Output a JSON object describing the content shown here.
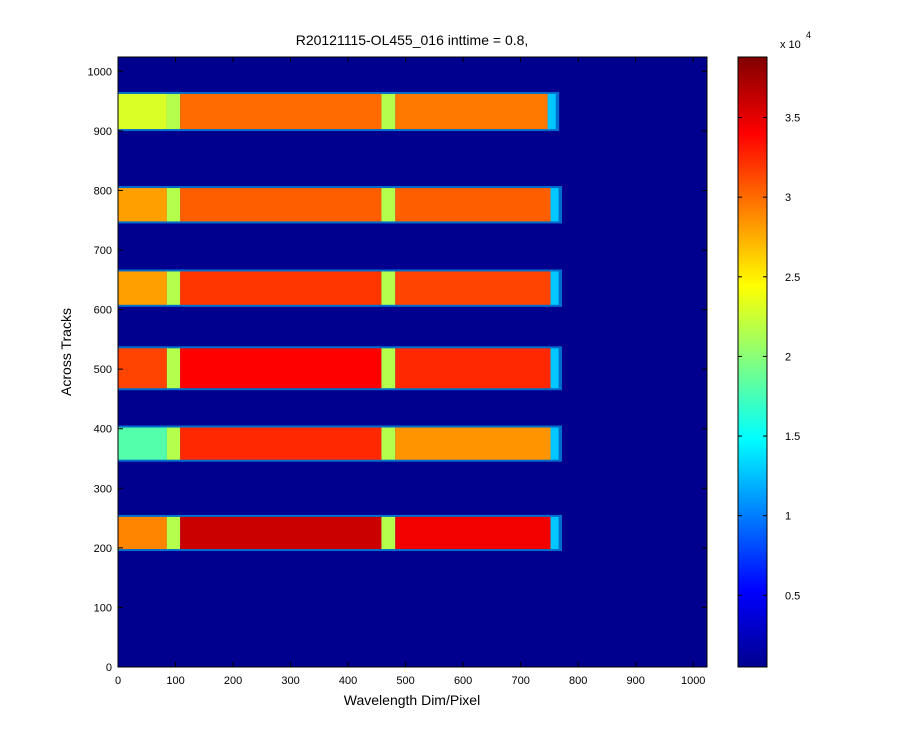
{
  "chart_data": {
    "type": "heatmap",
    "title": "R20121115-OL455_016 inttime = 0.8,",
    "xlabel": "Wavelength Dim/Pixel",
    "ylabel": "Across Tracks",
    "xlim": [
      0,
      1024
    ],
    "ylim": [
      0,
      1024
    ],
    "xticks": [
      0,
      100,
      200,
      300,
      400,
      500,
      600,
      700,
      800,
      900,
      1000
    ],
    "yticks": [
      0,
      100,
      200,
      300,
      400,
      500,
      600,
      700,
      800,
      900,
      1000
    ],
    "background_value": 500,
    "colorbar": {
      "colormap": "jet",
      "range": [
        500,
        38800
      ],
      "ticks": [
        5000,
        10000,
        15000,
        20000,
        25000,
        30000,
        35000
      ],
      "tick_labels": [
        "0.5",
        "1",
        "1.5",
        "2",
        "2.5",
        "3",
        "3.5"
      ],
      "multiplier": "x 10",
      "exponent": "4"
    },
    "tracks": [
      {
        "y_range": [
          198,
          252
        ],
        "x_end": 760,
        "levels": {
          "left": 29000,
          "segment1": 36000,
          "segment2": 34500
        }
      },
      {
        "y_range": [
          348,
          402
        ],
        "x_end": 760,
        "levels": {
          "left": 18000,
          "segment1": 32500,
          "segment2": 28500
        }
      },
      {
        "y_range": [
          468,
          535
        ],
        "x_end": 760,
        "levels": {
          "left": 31500,
          "segment1": 34000,
          "segment2": 32500
        }
      },
      {
        "y_range": [
          608,
          664
        ],
        "x_end": 760,
        "levels": {
          "left": 28000,
          "segment1": 32000,
          "segment2": 31500
        }
      },
      {
        "y_range": [
          748,
          804
        ],
        "x_end": 760,
        "levels": {
          "left": 28000,
          "segment1": 30500,
          "segment2": 30500
        }
      },
      {
        "y_range": [
          903,
          962
        ],
        "x_end": 755,
        "levels": {
          "left": 23000,
          "segment1": 30000,
          "segment2": 29500
        }
      }
    ]
  }
}
